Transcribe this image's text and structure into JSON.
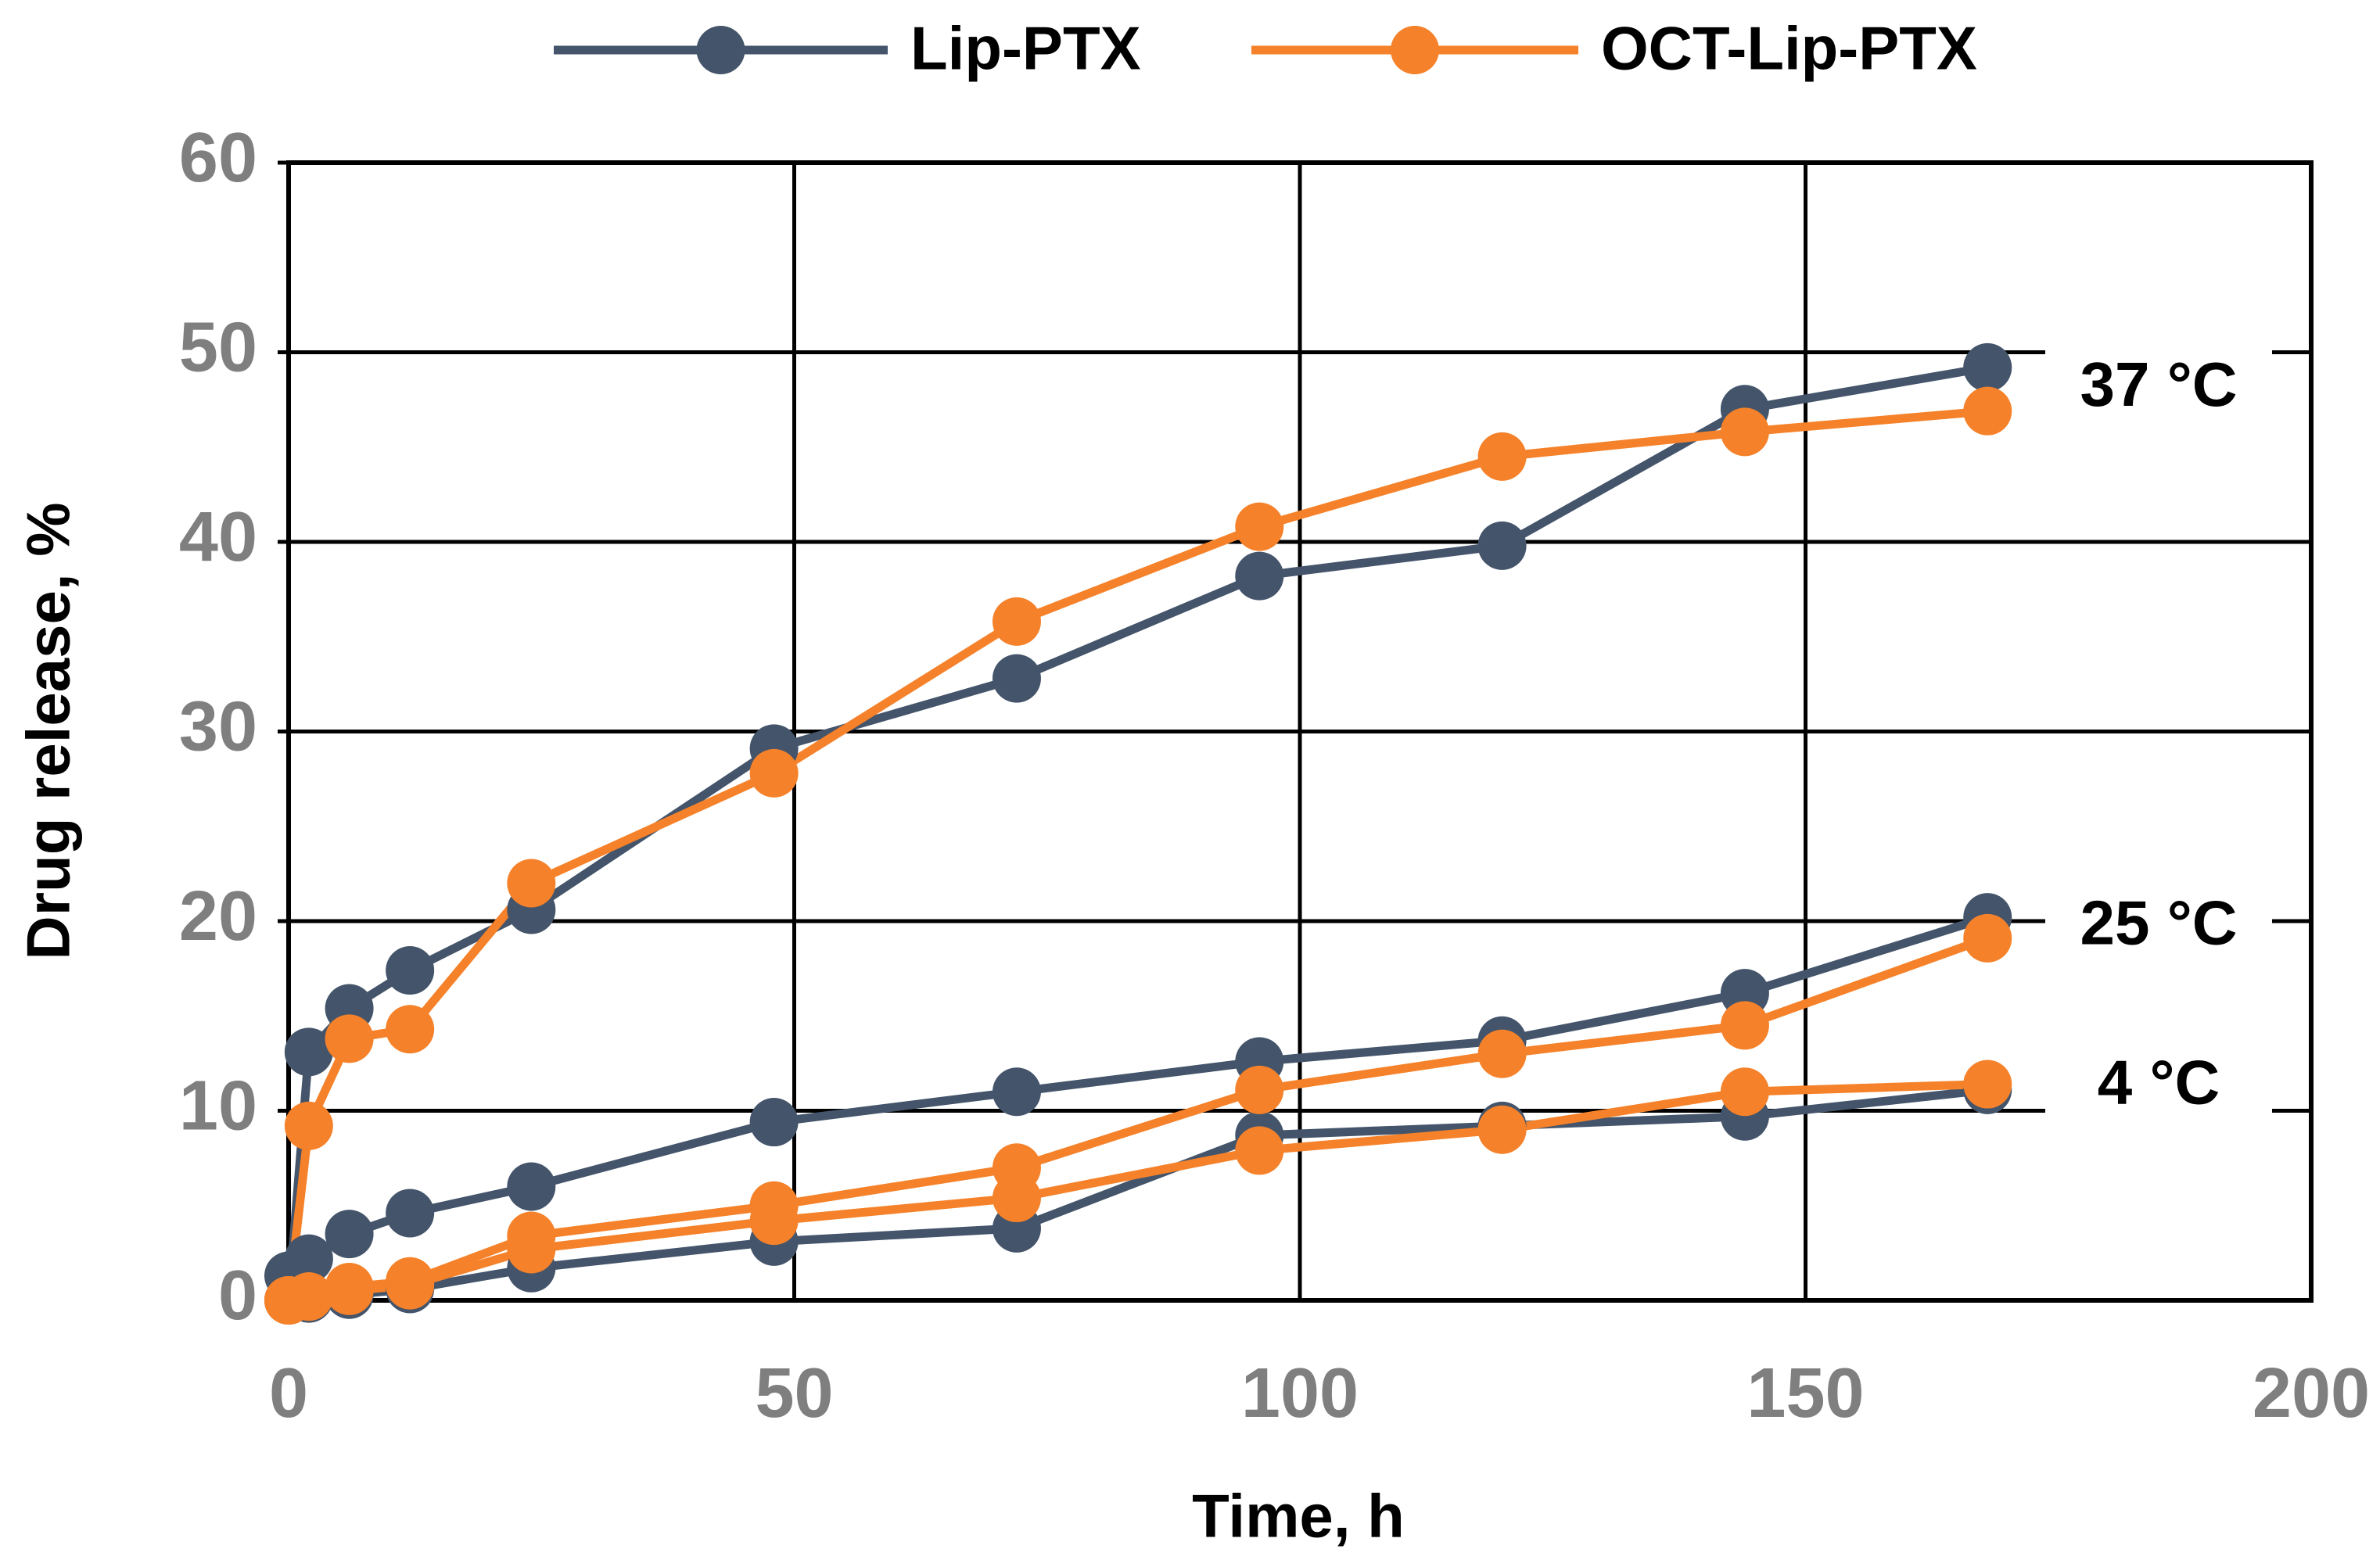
{
  "chart_data": {
    "type": "line",
    "x_label": "Time, h",
    "y_label": "Drug release, %",
    "x": [
      0,
      2,
      6,
      12,
      24,
      48,
      72,
      96,
      120,
      144,
      168
    ],
    "conditions": [
      "37 °C",
      "25 °C",
      "4 °C"
    ],
    "series": [
      {
        "name": "Lip-PTX",
        "color": "#44546a",
        "values": [
          [
            0,
            13.1,
            15.4,
            17.4,
            20.6,
            29.1,
            32.8,
            38.2,
            39.8,
            47.0,
            49.2
          ],
          [
            1.3,
            2.2,
            3.5,
            4.6,
            6.0,
            9.4,
            11.0,
            12.6,
            13.7,
            16.2,
            20.2
          ],
          [
            0,
            0.1,
            0.3,
            0.6,
            1.7,
            3.1,
            3.8,
            8.7,
            9.2,
            9.7,
            11.1
          ]
        ]
      },
      {
        "name": "OCT-Lip-PTX",
        "color": "#f5822a",
        "values": [
          [
            0,
            9.2,
            13.8,
            14.3,
            22.0,
            27.8,
            35.8,
            40.8,
            44.5,
            45.8,
            46.9
          ],
          [
            0,
            0.2,
            0.7,
            1.0,
            3.4,
            5.0,
            7.0,
            11.1,
            13.0,
            14.5,
            19.1
          ],
          [
            0,
            0.2,
            0.5,
            0.8,
            2.7,
            4.2,
            5.4,
            7.9,
            9.0,
            11.0,
            11.4
          ]
        ]
      }
    ],
    "xlim": [
      0,
      200
    ],
    "xticks": [
      0,
      50,
      100,
      150,
      200
    ],
    "ylim": [
      0,
      60
    ],
    "yticks": [
      0,
      10,
      20,
      30,
      40,
      50,
      60
    ],
    "grid": true,
    "legend": "top"
  }
}
